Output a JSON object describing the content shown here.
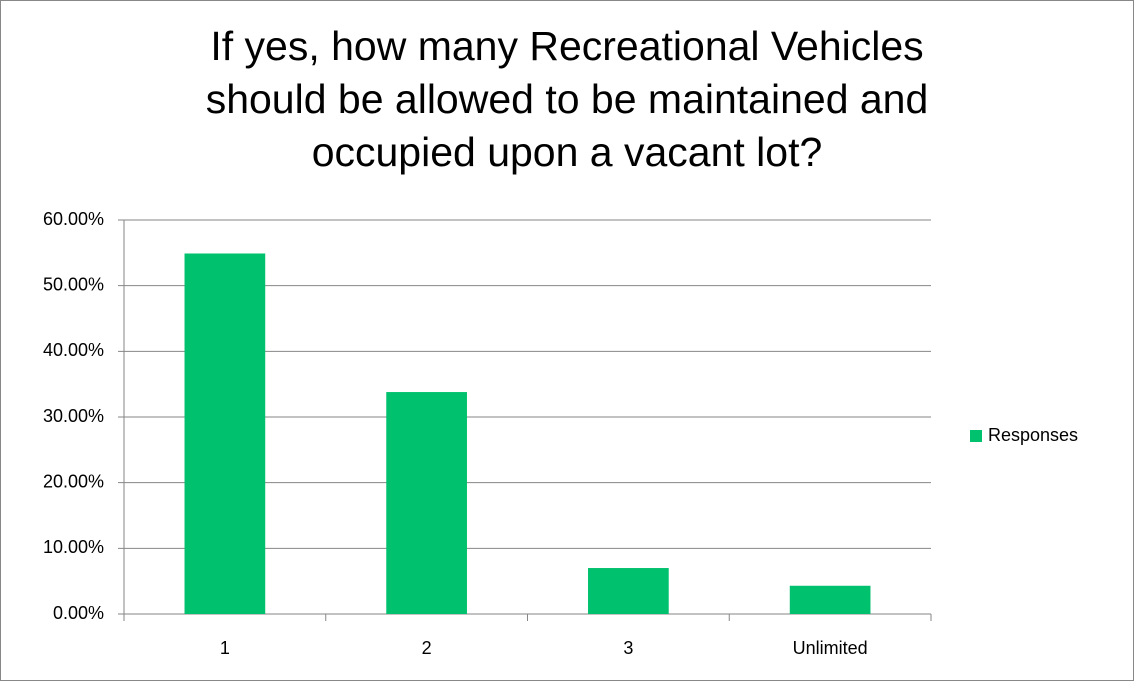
{
  "chart_data": {
    "type": "bar",
    "title": "If yes, how many Recreational Vehicles should be allowed to be maintained and occupied upon a vacant lot?",
    "categories": [
      "1",
      "2",
      "3",
      "Unlimited"
    ],
    "series": [
      {
        "name": "Responses",
        "color": "#00c16e",
        "values": [
          54.9,
          33.8,
          7.0,
          4.3
        ]
      }
    ],
    "ylim": [
      0,
      60
    ],
    "yticks": [
      {
        "value": 0,
        "label": "0.00%"
      },
      {
        "value": 10,
        "label": "10.00%"
      },
      {
        "value": 20,
        "label": "20.00%"
      },
      {
        "value": 30,
        "label": "30.00%"
      },
      {
        "value": 40,
        "label": "40.00%"
      },
      {
        "value": 50,
        "label": "50.00%"
      },
      {
        "value": 60,
        "label": "60.00%"
      }
    ],
    "grid": true,
    "legend": "right"
  }
}
